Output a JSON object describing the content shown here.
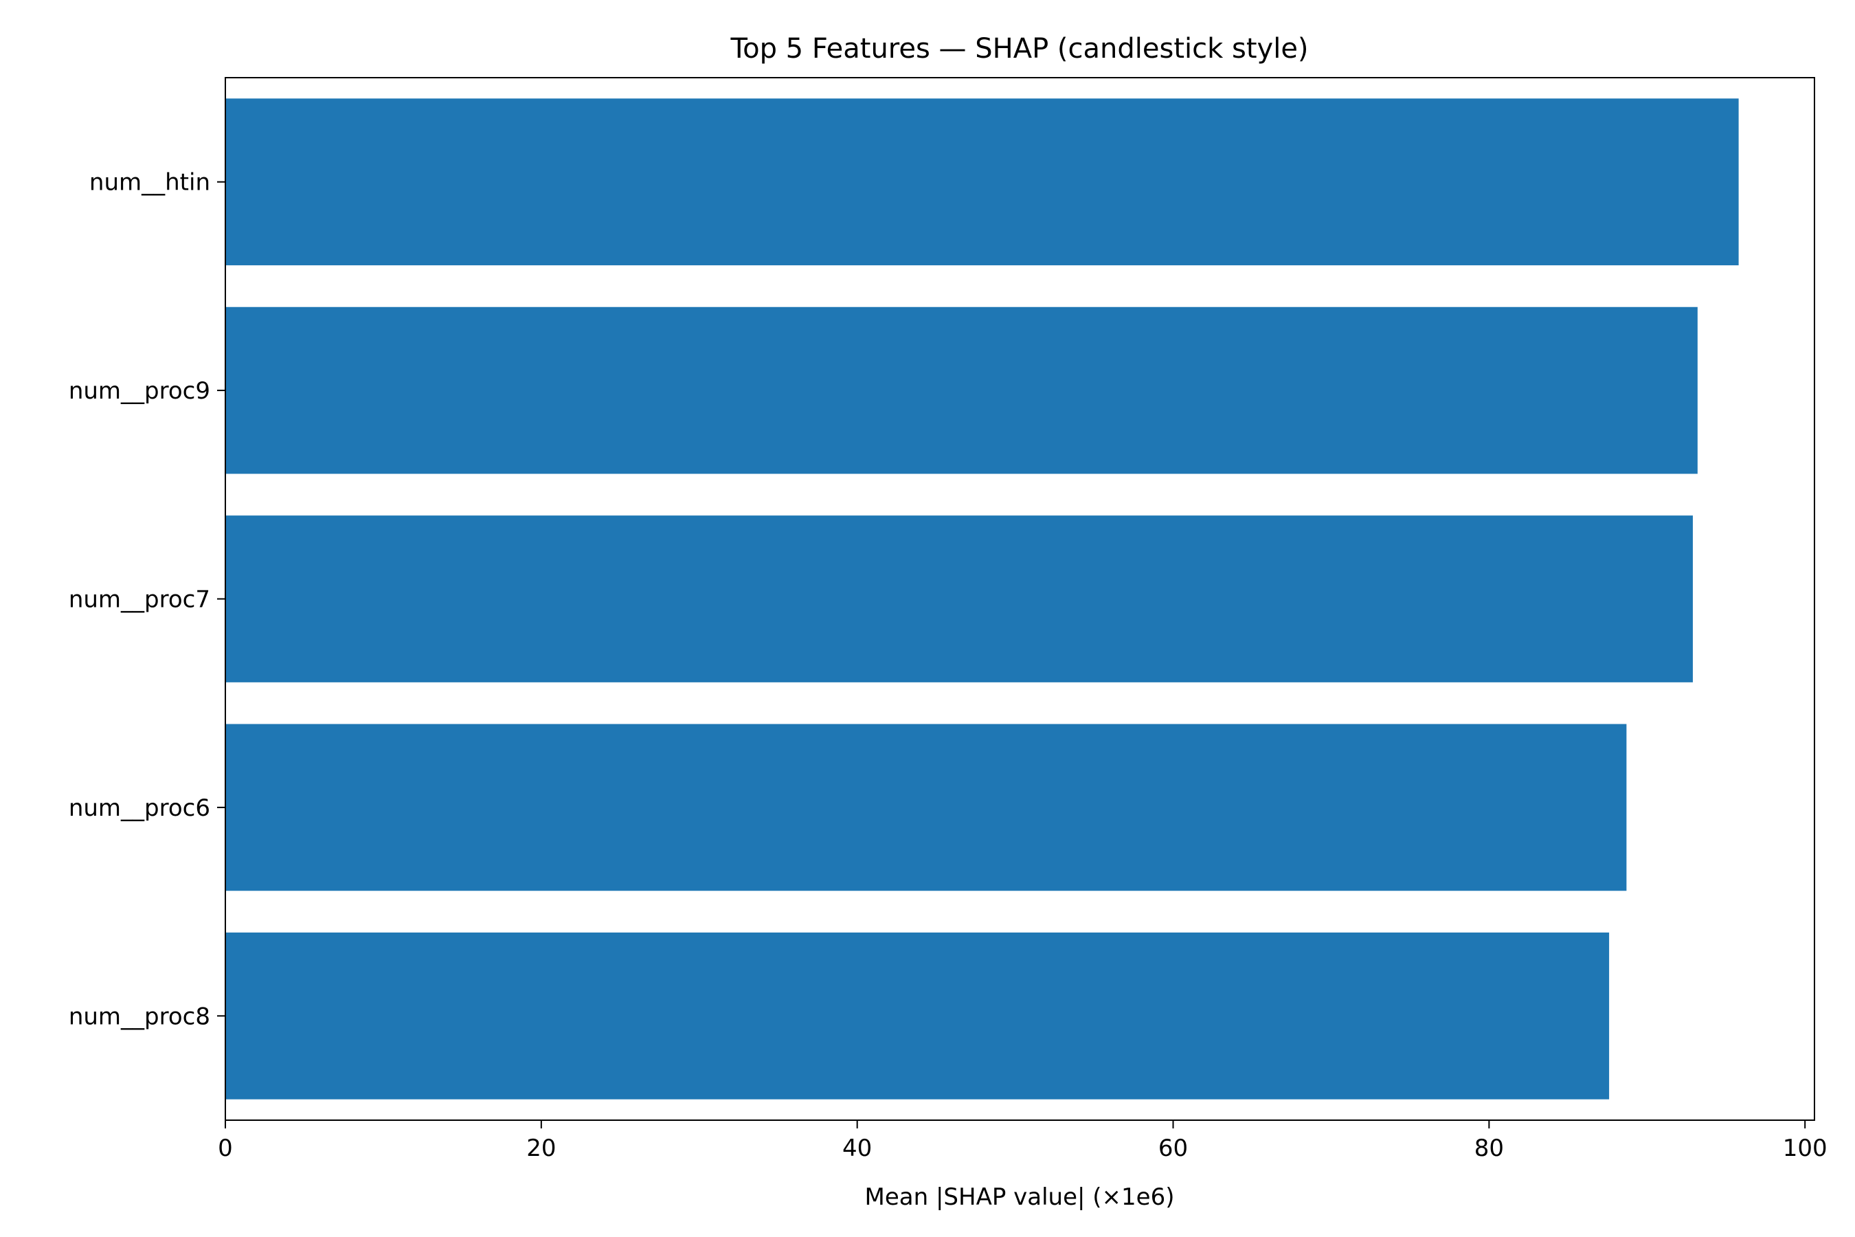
{
  "chart_data": {
    "type": "bar",
    "orientation": "horizontal",
    "title": "Top 5 Features — SHAP (candlestick style)",
    "xlabel": "Mean |SHAP value| (×1e6)",
    "ylabel": "",
    "categories": [
      "num__htin",
      "num__proc9",
      "num__proc7",
      "num__proc6",
      "num__proc8"
    ],
    "values": [
      95.8,
      93.2,
      92.9,
      88.7,
      87.6
    ],
    "xlim": [
      0,
      100.6
    ],
    "xticks": [
      0,
      20,
      40,
      60,
      80,
      100
    ],
    "grid": false,
    "bar_color": "#1f77b4"
  }
}
